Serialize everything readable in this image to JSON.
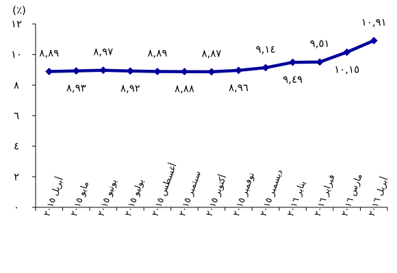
{
  "chart_data": {
    "type": "line",
    "unit_label": "(٪)",
    "ylim": [
      0,
      12
    ],
    "y_ticks": [
      "٠",
      "٢",
      "٤",
      "٦",
      "٨",
      "١٠",
      "١٢"
    ],
    "y_tick_values": [
      0,
      2,
      4,
      6,
      8,
      10,
      12
    ],
    "grid": false,
    "categories": [
      "أبريل ٢٠١٥",
      "مايو ٢٠١٥",
      "يونيو ٢٠١٥",
      "يوليو ٢٠١٥",
      "أغسطس ٢٠١٥",
      "سبتمبر ٢٠١٥",
      "أكتوبر ٢٠١٥",
      "نوفمبر ٢٠١٥",
      "ديسمبر ٢٠١٥",
      "يناير ٢٠١٦",
      "فبراير ٢٠١٦",
      "مارس ٢٠١٦",
      "أبريل ٢٠١٦"
    ],
    "series": [
      {
        "color": "#000099",
        "values": [
          8.89,
          8.93,
          8.97,
          8.92,
          8.89,
          8.88,
          8.87,
          8.96,
          9.14,
          9.49,
          9.51,
          10.15,
          10.91
        ],
        "labels": [
          "٨,٨٩",
          "٨,٩٣",
          "٨,٩٧",
          "٨,٩٢",
          "٨,٨٩",
          "٨,٨٨",
          "٨,٨٧",
          "٨,٩٦",
          "٩,١٤",
          "٩,٤٩",
          "٩,٥١",
          "١٠,١٥",
          "١٠,٩١"
        ],
        "label_positions": [
          "above",
          "below",
          "above",
          "below",
          "above",
          "below",
          "above",
          "below",
          "above",
          "below",
          "above",
          "below",
          "above"
        ]
      }
    ]
  }
}
